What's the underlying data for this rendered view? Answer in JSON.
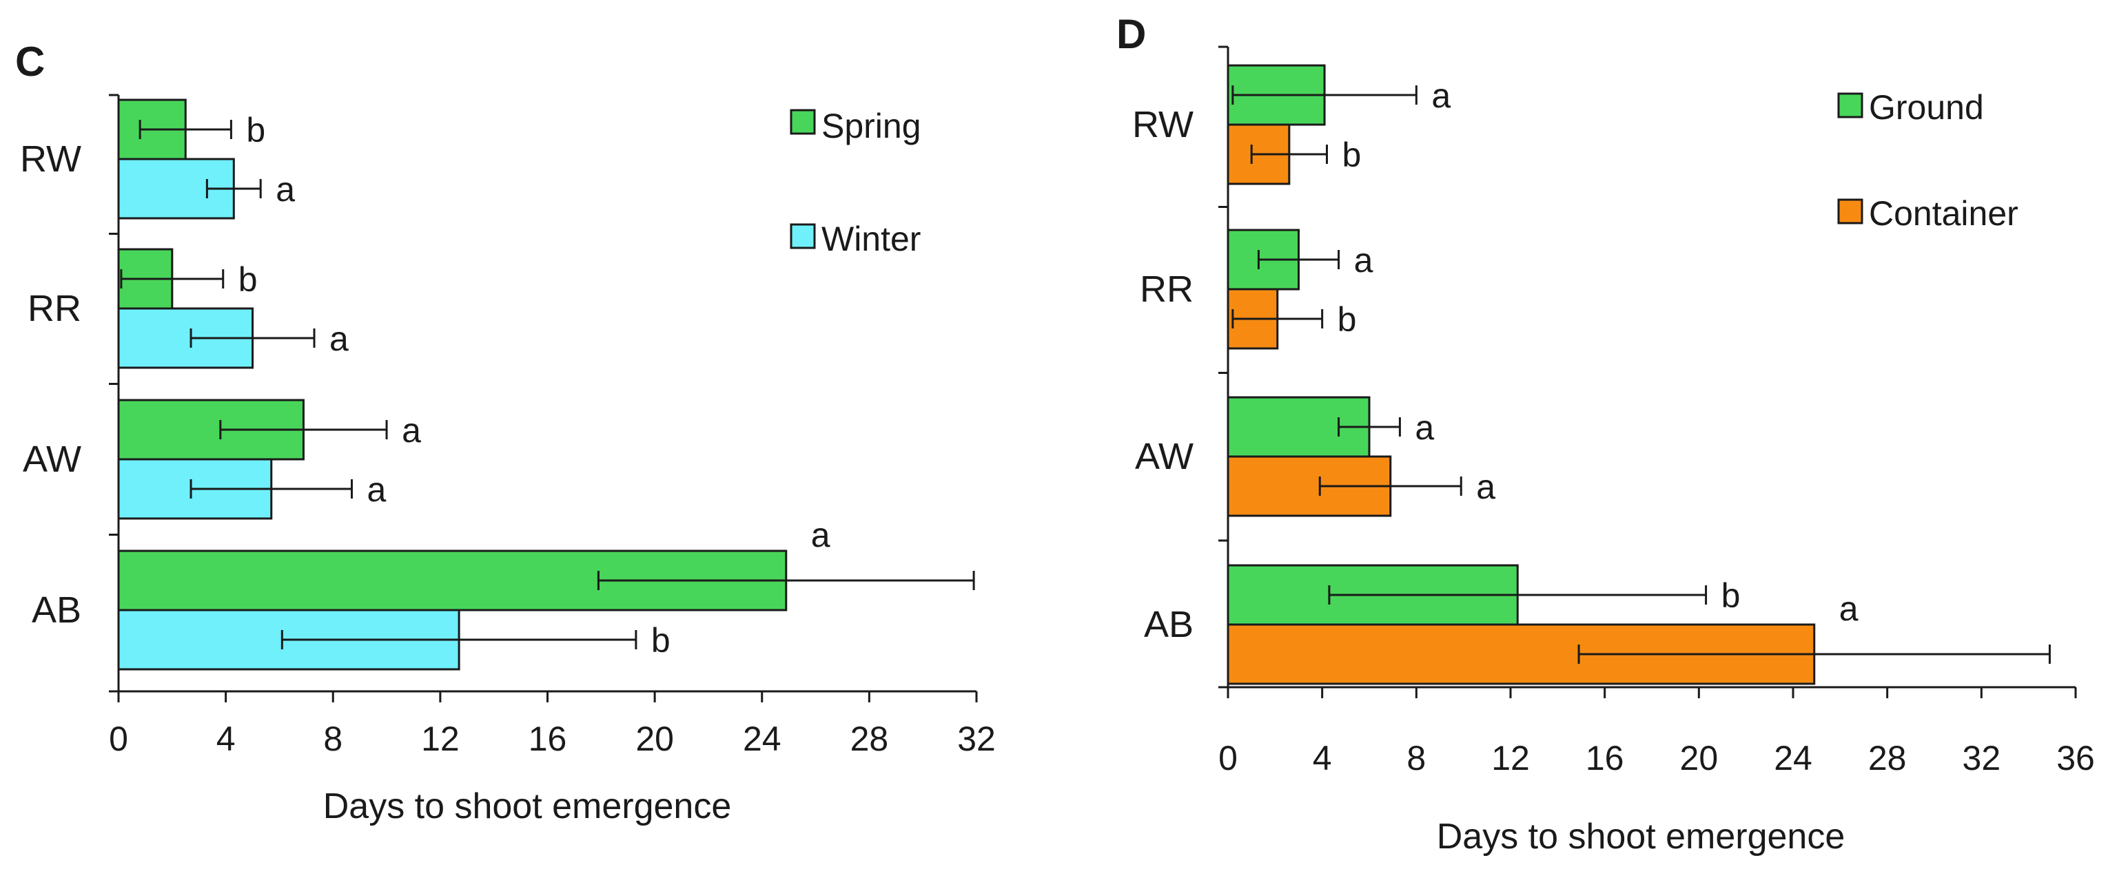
{
  "chart_data": [
    {
      "type": "bar",
      "orientation": "horizontal",
      "panel": "C",
      "title": "",
      "xlabel": "Days to shoot emergence",
      "ylabel": "",
      "xlim": [
        0,
        32
      ],
      "xticks": [
        "0",
        "4",
        "8",
        "12",
        "16",
        "20",
        "24",
        "28",
        "32"
      ],
      "categories": [
        "RW",
        "RR",
        "AW",
        "AB"
      ],
      "legend_position": "top-right",
      "grid": false,
      "series": [
        {
          "name": "Spring",
          "color": "#48d65a",
          "values": [
            2.5,
            2.0,
            6.9,
            24.9
          ],
          "error": [
            1.7,
            1.9,
            3.1,
            7.0
          ],
          "labels": [
            "b",
            "b",
            "a",
            "a"
          ]
        },
        {
          "name": "Winter",
          "color": "#6ff0fb",
          "values": [
            4.3,
            5.0,
            5.7,
            12.7
          ],
          "error": [
            1.0,
            2.3,
            3.0,
            6.6
          ],
          "labels": [
            "a",
            "a",
            "a",
            "b"
          ]
        }
      ]
    },
    {
      "type": "bar",
      "orientation": "horizontal",
      "panel": "D",
      "title": "",
      "xlabel": "Days to shoot emergence",
      "ylabel": "",
      "xlim": [
        0,
        36
      ],
      "xticks": [
        "0",
        "4",
        "8",
        "12",
        "16",
        "20",
        "24",
        "28",
        "32",
        "36"
      ],
      "categories": [
        "RW",
        "RR",
        "AW",
        "AB"
      ],
      "legend_position": "top-right",
      "grid": false,
      "series": [
        {
          "name": "Ground",
          "color": "#48d65a",
          "values": [
            4.1,
            3.0,
            6.0,
            12.3
          ],
          "error": [
            3.9,
            1.7,
            1.3,
            8.0
          ],
          "labels": [
            "a",
            "a",
            "a",
            "b"
          ]
        },
        {
          "name": "Container",
          "color": "#f78b12",
          "values": [
            2.6,
            2.1,
            6.9,
            24.9
          ],
          "error": [
            1.6,
            1.9,
            3.0,
            10.0
          ],
          "labels": [
            "b",
            "b",
            "a",
            "a"
          ]
        }
      ]
    }
  ]
}
